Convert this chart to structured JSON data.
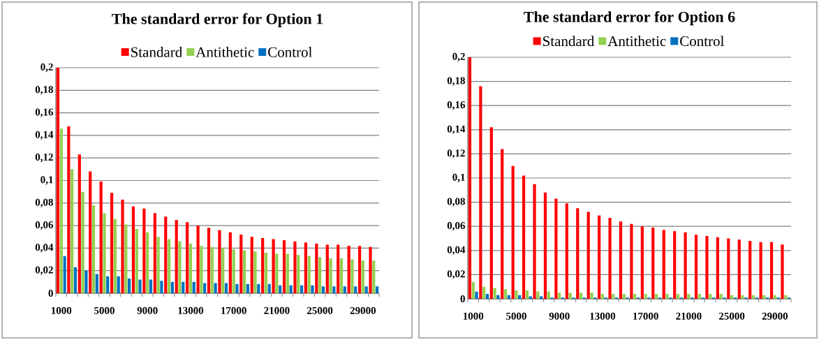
{
  "chart_data": [
    {
      "type": "bar",
      "title": "The standard error for Option 1",
      "categories": [
        "1000",
        null,
        null,
        null,
        "5000",
        null,
        null,
        null,
        "9000",
        null,
        null,
        null,
        "13000",
        null,
        null,
        null,
        "17000",
        null,
        null,
        null,
        "21000",
        null,
        null,
        null,
        "25000",
        null,
        null,
        null,
        "29000",
        null
      ],
      "series": [
        {
          "name": "Standard",
          "color": "#ff0000",
          "values": [
            0.2,
            0.148,
            0.123,
            0.108,
            0.099,
            0.089,
            0.083,
            0.077,
            0.075,
            0.071,
            0.068,
            0.065,
            0.063,
            0.06,
            0.058,
            0.056,
            0.054,
            0.052,
            0.05,
            0.049,
            0.048,
            0.047,
            0.046,
            0.045,
            0.044,
            0.043,
            0.043,
            0.042,
            0.042,
            0.041
          ]
        },
        {
          "name": "Antithetic",
          "color": "#92d050",
          "values": [
            0.146,
            0.11,
            0.09,
            0.078,
            0.071,
            0.066,
            0.061,
            0.057,
            0.054,
            0.05,
            0.048,
            0.046,
            0.044,
            0.042,
            0.041,
            0.04,
            0.039,
            0.038,
            0.037,
            0.036,
            0.035,
            0.035,
            0.034,
            0.033,
            0.032,
            0.031,
            0.031,
            0.03,
            0.029,
            0.029
          ]
        },
        {
          "name": "Control",
          "color": "#0070c0",
          "values": [
            0.033,
            0.023,
            0.02,
            0.017,
            0.015,
            0.015,
            0.013,
            0.012,
            0.012,
            0.011,
            0.01,
            0.01,
            0.01,
            0.009,
            0.009,
            0.009,
            0.008,
            0.008,
            0.008,
            0.008,
            0.007,
            0.007,
            0.007,
            0.007,
            0.006,
            0.006,
            0.006,
            0.006,
            0.006,
            0.006
          ]
        }
      ],
      "ylim": [
        0,
        0.2
      ],
      "yticks": [
        0,
        {
          "value": 0.02,
          "label": "0,02"
        },
        {
          "value": 0.04,
          "label": "0,04"
        },
        {
          "value": 0.06,
          "label": "0,06"
        },
        {
          "value": 0.08,
          "label": "0,08"
        },
        {
          "value": 0.1,
          "label": "0,1"
        },
        {
          "value": 0.12,
          "label": "0,12"
        },
        {
          "value": 0.14,
          "label": "0,14"
        },
        {
          "value": 0.16,
          "label": "0,16"
        },
        {
          "value": 0.18,
          "label": "0,18"
        },
        {
          "value": 0.2,
          "label": "0,2"
        }
      ],
      "grid": "y",
      "legend": "top"
    },
    {
      "type": "bar",
      "title": "The standard error for Option 6",
      "categories": [
        "1000",
        null,
        null,
        null,
        "5000",
        null,
        null,
        null,
        "9000",
        null,
        null,
        null,
        "13000",
        null,
        null,
        null,
        "17000",
        null,
        null,
        null,
        "21000",
        null,
        null,
        null,
        "25000",
        null,
        null,
        null,
        "29000",
        null
      ],
      "series": [
        {
          "name": "Standard",
          "color": "#ff0000",
          "values": [
            0.2,
            0.176,
            0.142,
            0.124,
            0.11,
            0.102,
            0.095,
            0.088,
            0.083,
            0.079,
            0.075,
            0.072,
            0.069,
            0.067,
            0.064,
            0.062,
            0.06,
            0.059,
            0.057,
            0.056,
            0.055,
            0.053,
            0.052,
            0.051,
            0.05,
            0.049,
            0.048,
            0.047,
            0.047,
            0.045
          ]
        },
        {
          "name": "Antithetic",
          "color": "#92d050",
          "values": [
            0.014,
            0.01,
            0.009,
            0.008,
            0.007,
            0.007,
            0.006,
            0.006,
            0.005,
            0.005,
            0.005,
            0.005,
            0.004,
            0.004,
            0.004,
            0.004,
            0.004,
            0.004,
            0.004,
            0.004,
            0.004,
            0.004,
            0.004,
            0.004,
            0.003,
            0.003,
            0.003,
            0.003,
            0.003,
            0.003
          ]
        },
        {
          "name": "Control",
          "color": "#0070c0",
          "values": [
            0.006,
            0.004,
            0.003,
            0.003,
            0.003,
            0.002,
            0.002,
            0.001,
            0.001,
            0.001,
            0.001,
            0.001,
            0.001,
            0.001,
            0.001,
            0.001,
            0.001,
            0.001,
            0.001,
            0.001,
            0.001,
            0.001,
            0.001,
            0.001,
            0.001,
            0.001,
            0.001,
            0.001,
            0.001,
            0.001
          ]
        }
      ],
      "ylim": [
        0,
        0.2
      ],
      "yticks": [
        0,
        {
          "value": 0.02,
          "label": "0,02"
        },
        {
          "value": 0.04,
          "label": "0,04"
        },
        {
          "value": 0.06,
          "label": "0,06"
        },
        {
          "value": 0.08,
          "label": "0,08"
        },
        {
          "value": 0.1,
          "label": "0,1"
        },
        {
          "value": 0.12,
          "label": "0,12"
        },
        {
          "value": 0.14,
          "label": "0,14"
        },
        {
          "value": 0.16,
          "label": "0,16"
        },
        {
          "value": 0.18,
          "label": "0,18"
        },
        {
          "value": 0.2,
          "label": "0,2"
        }
      ],
      "grid": "y",
      "legend": "top"
    }
  ]
}
